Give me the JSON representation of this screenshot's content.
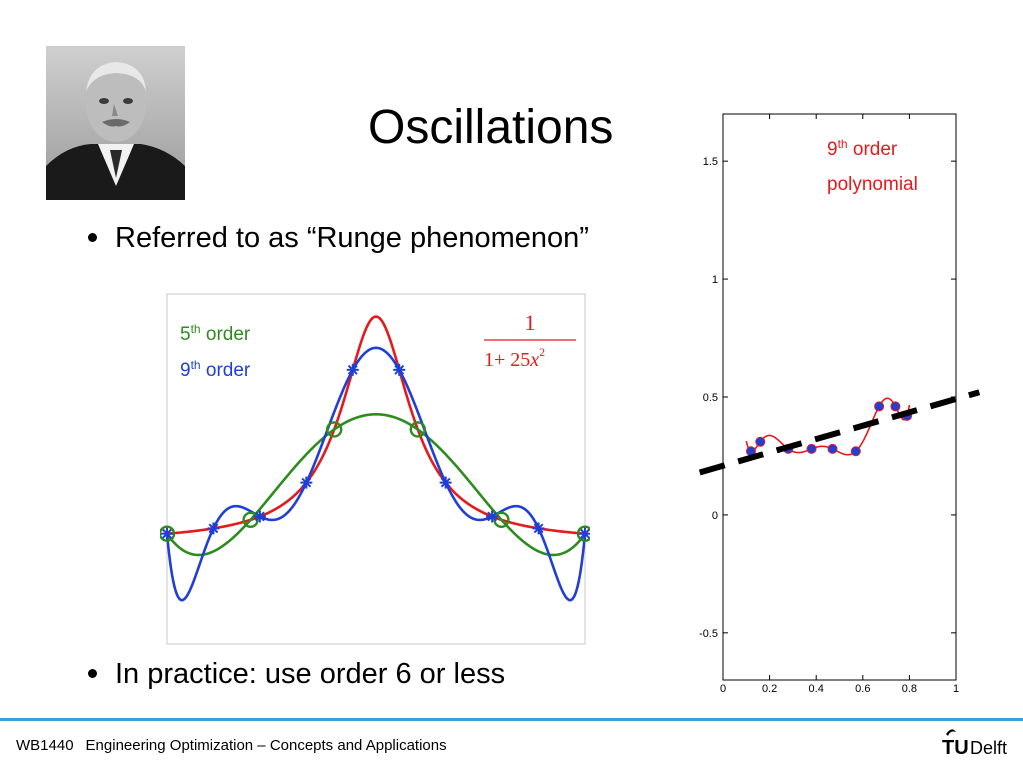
{
  "slide": {
    "title": "Oscillations",
    "bullets": [
      "Referred to as “Runge phenomenon”",
      "In practice: use order 6 or less"
    ]
  },
  "footer": {
    "course_code": "WB1440",
    "course_title": "Engineering Optimization – Concepts and Applications",
    "logo_text_main": "TU",
    "logo_text_sub": "Delft"
  },
  "colors": {
    "accent_line": "#3aa0dc",
    "red": "#e41a1c",
    "green": "#2e8b1e",
    "blue": "#1f3fd6"
  },
  "chart_data": [
    {
      "type": "line",
      "title": "",
      "xlabel": "",
      "ylabel": "",
      "xlim": [
        -1,
        1
      ],
      "ylim": [
        -0.45,
        1.1
      ],
      "grid": false,
      "legend": [
        {
          "label_base": "5",
          "label_sup": "th",
          "label_rest": " order",
          "color": "#2e8b1e"
        },
        {
          "label_base": "9",
          "label_sup": "th",
          "label_rest": " order",
          "color": "#1f3fd6"
        }
      ],
      "formula": {
        "numerator": "1",
        "denominator_prefix": "1+ 25",
        "denominator_var": "x",
        "denominator_exp": "2"
      },
      "series": [
        {
          "function": "1/(1+25x^2)",
          "color": "#e41a1c"
        },
        {
          "function": "5th order interpolant",
          "color": "#2e8b1e",
          "nodes_x": [
            -1,
            -0.6,
            -0.2,
            0.2,
            0.6,
            1
          ]
        },
        {
          "function": "9th order interpolant",
          "color": "#1f3fd6",
          "nodes_x": [
            -1,
            -0.7778,
            -0.5556,
            -0.3333,
            -0.1111,
            0.1111,
            0.3333,
            0.5556,
            0.7778,
            1
          ]
        }
      ]
    },
    {
      "type": "line",
      "title": "",
      "annotation": {
        "base": "9",
        "sup": "th",
        "rest": " order",
        "line2": "polynomial"
      },
      "xlim": [
        0,
        1
      ],
      "ylim": [
        -0.7,
        1.7
      ],
      "x_ticks": [
        "0",
        "0.2",
        "0.4",
        "0.6",
        "0.8",
        "1"
      ],
      "y_ticks": [
        "-0.5",
        "0",
        "0.5",
        "1",
        "1.5"
      ],
      "grid": false,
      "trend_line": {
        "x": [
          -0.1,
          1.1
        ],
        "y": [
          0.18,
          0.52
        ],
        "style": "dashed",
        "color": "#000000"
      },
      "points": {
        "x": [
          0.12,
          0.16,
          0.28,
          0.38,
          0.47,
          0.57,
          0.67,
          0.74,
          0.79
        ],
        "y": [
          0.27,
          0.31,
          0.28,
          0.28,
          0.28,
          0.27,
          0.46,
          0.46,
          0.42
        ]
      },
      "curve_x_range": [
        0.1,
        0.8
      ],
      "curve_color": "#e41a1c"
    }
  ]
}
